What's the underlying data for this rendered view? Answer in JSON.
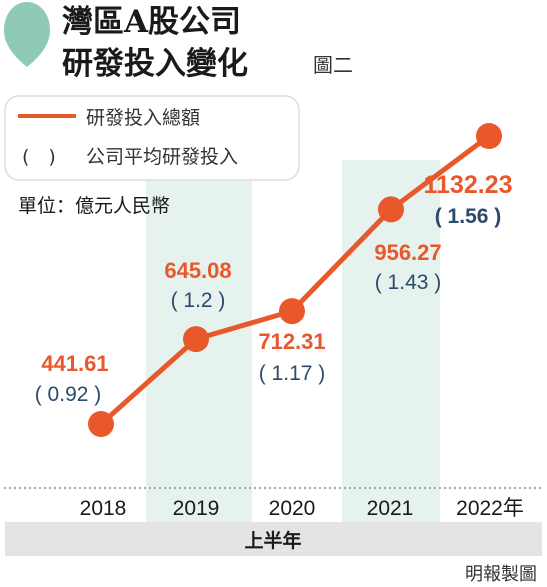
{
  "header": {
    "title_line1": "灣區A股公司",
    "title_line2": "研發投入變化",
    "figure_label": "圖二"
  },
  "legend": {
    "line_label": "研發投入總額",
    "paren_marker": "(　)",
    "paren_label": "公司平均研發投入"
  },
  "unit_label": "單位：億元人民幣",
  "period_label": "上半年",
  "credit": "明報製圖",
  "colors": {
    "line": "#e8582b",
    "average_text": "#2c4a6b",
    "band": "#e6f2ee",
    "period_bar": "#e4e4e6",
    "legend_icon": "#8fcbb4"
  },
  "chart_data": {
    "type": "line",
    "categories": [
      "2018",
      "2019",
      "2020",
      "2021",
      "2022年"
    ],
    "series": [
      {
        "name": "研發投入總額",
        "values": [
          441.61,
          645.08,
          712.31,
          956.27,
          1132.23
        ],
        "labels": [
          "441.61",
          "645.08",
          "712.31",
          "956.27",
          "1132.23"
        ]
      },
      {
        "name": "公司平均研發投入",
        "values": [
          0.92,
          1.2,
          1.17,
          1.43,
          1.56
        ],
        "labels": [
          "( 0.92 )",
          "( 1.2 )",
          "( 1.17 )",
          "( 1.43 )",
          "( 1.56 )"
        ]
      }
    ],
    "ylim": [
      300,
      1250
    ],
    "grid": false,
    "legend_position": "top-left"
  }
}
